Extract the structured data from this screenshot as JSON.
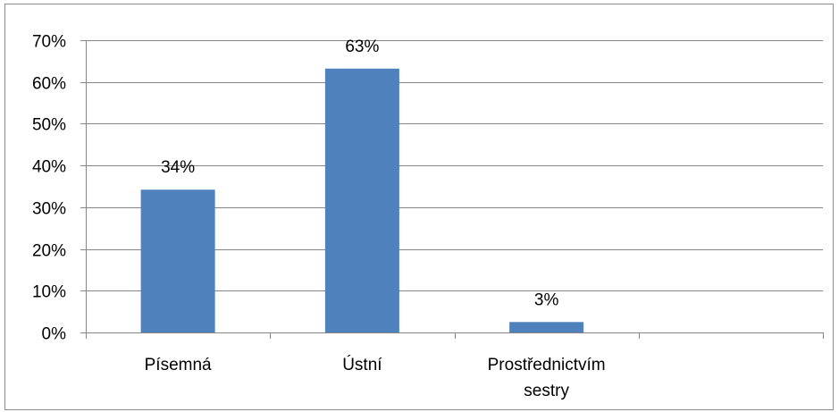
{
  "chart_data": {
    "type": "bar",
    "title": "",
    "xlabel": "",
    "ylabel": "",
    "categories": [
      "Písemná",
      "Ústní",
      "Prostřednictvím sestry",
      ""
    ],
    "category_lines": [
      [
        "Písemná"
      ],
      [
        "Ústní"
      ],
      [
        "Prostřednictvím",
        "sestry"
      ],
      []
    ],
    "values": [
      0.342,
      0.632,
      0.025,
      null
    ],
    "data_labels": [
      "34%",
      "63%",
      "3%",
      ""
    ],
    "ylim": [
      0,
      0.7
    ],
    "yticks": [
      0,
      0.1,
      0.2,
      0.3,
      0.4,
      0.5,
      0.6,
      0.7
    ],
    "ytick_labels": [
      "0%",
      "10%",
      "20%",
      "30%",
      "40%",
      "50%",
      "60%",
      "70%"
    ],
    "grid": true,
    "legend": "none",
    "colors": {
      "bar": "#4f81bd",
      "grid": "#868686",
      "axis": "#868686",
      "frame": "#8c8c8c",
      "text": "#000000"
    }
  }
}
